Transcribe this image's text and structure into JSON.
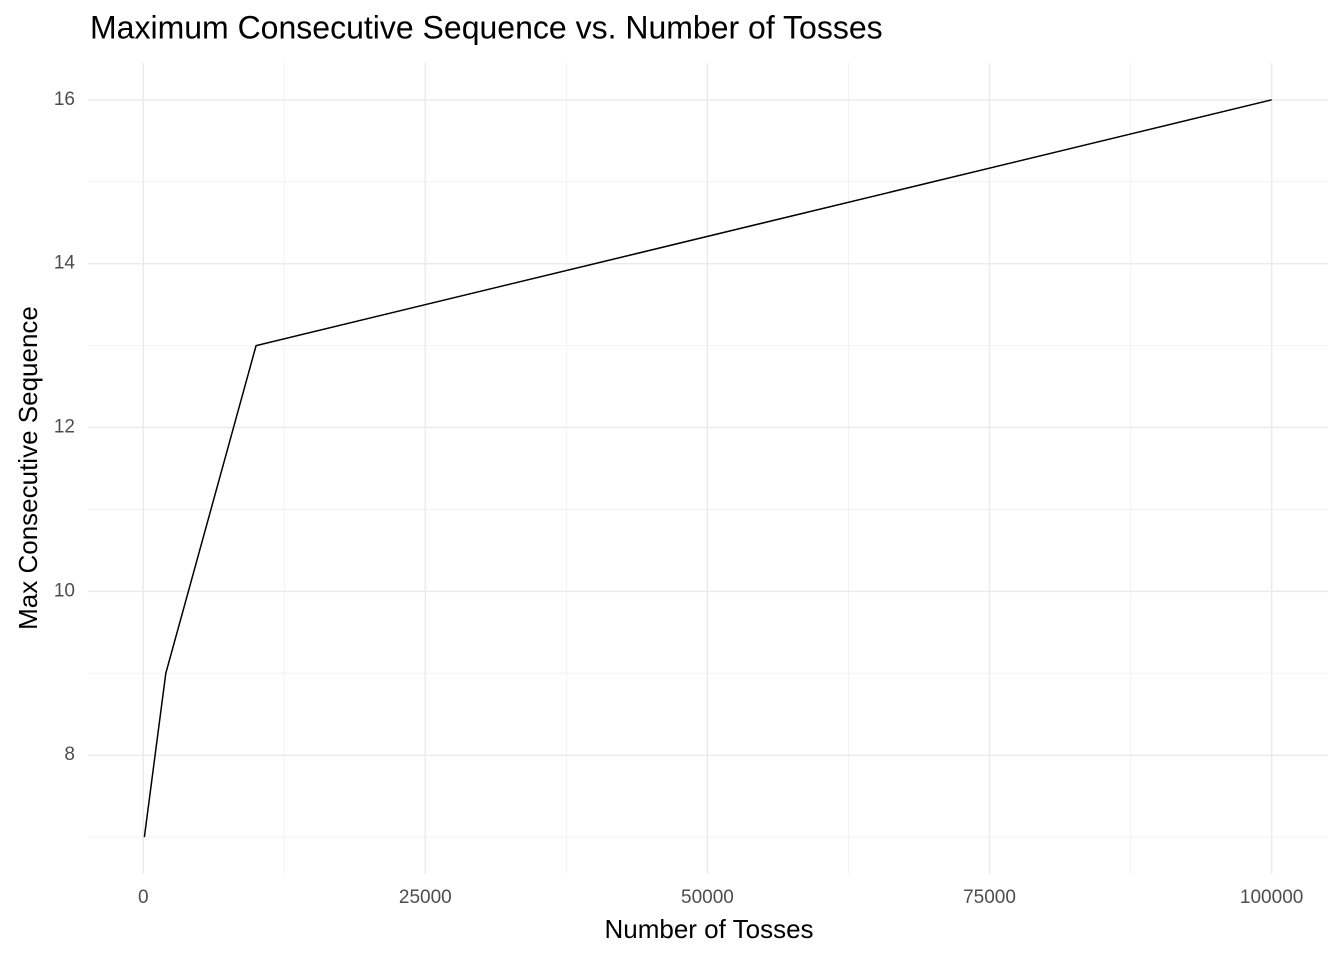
{
  "chart_data": {
    "type": "line",
    "title": "Maximum Consecutive Sequence vs. Number of Tosses",
    "x_label": "Number of Tosses",
    "y_label": "Max Consecutive Sequence",
    "x": [
      100,
      2000,
      10000,
      100000
    ],
    "series": [
      {
        "name": "Max Consecutive Sequence",
        "color": "#000000",
        "values": [
          7,
          9,
          13,
          16
        ]
      }
    ],
    "xlim": [
      -4895,
      104995
    ],
    "ylim": [
      6.55,
      16.45
    ],
    "xticks": [
      0,
      25000,
      50000,
      75000,
      100000
    ],
    "yticks": [
      8,
      10,
      12,
      14,
      16
    ],
    "grid": true
  }
}
